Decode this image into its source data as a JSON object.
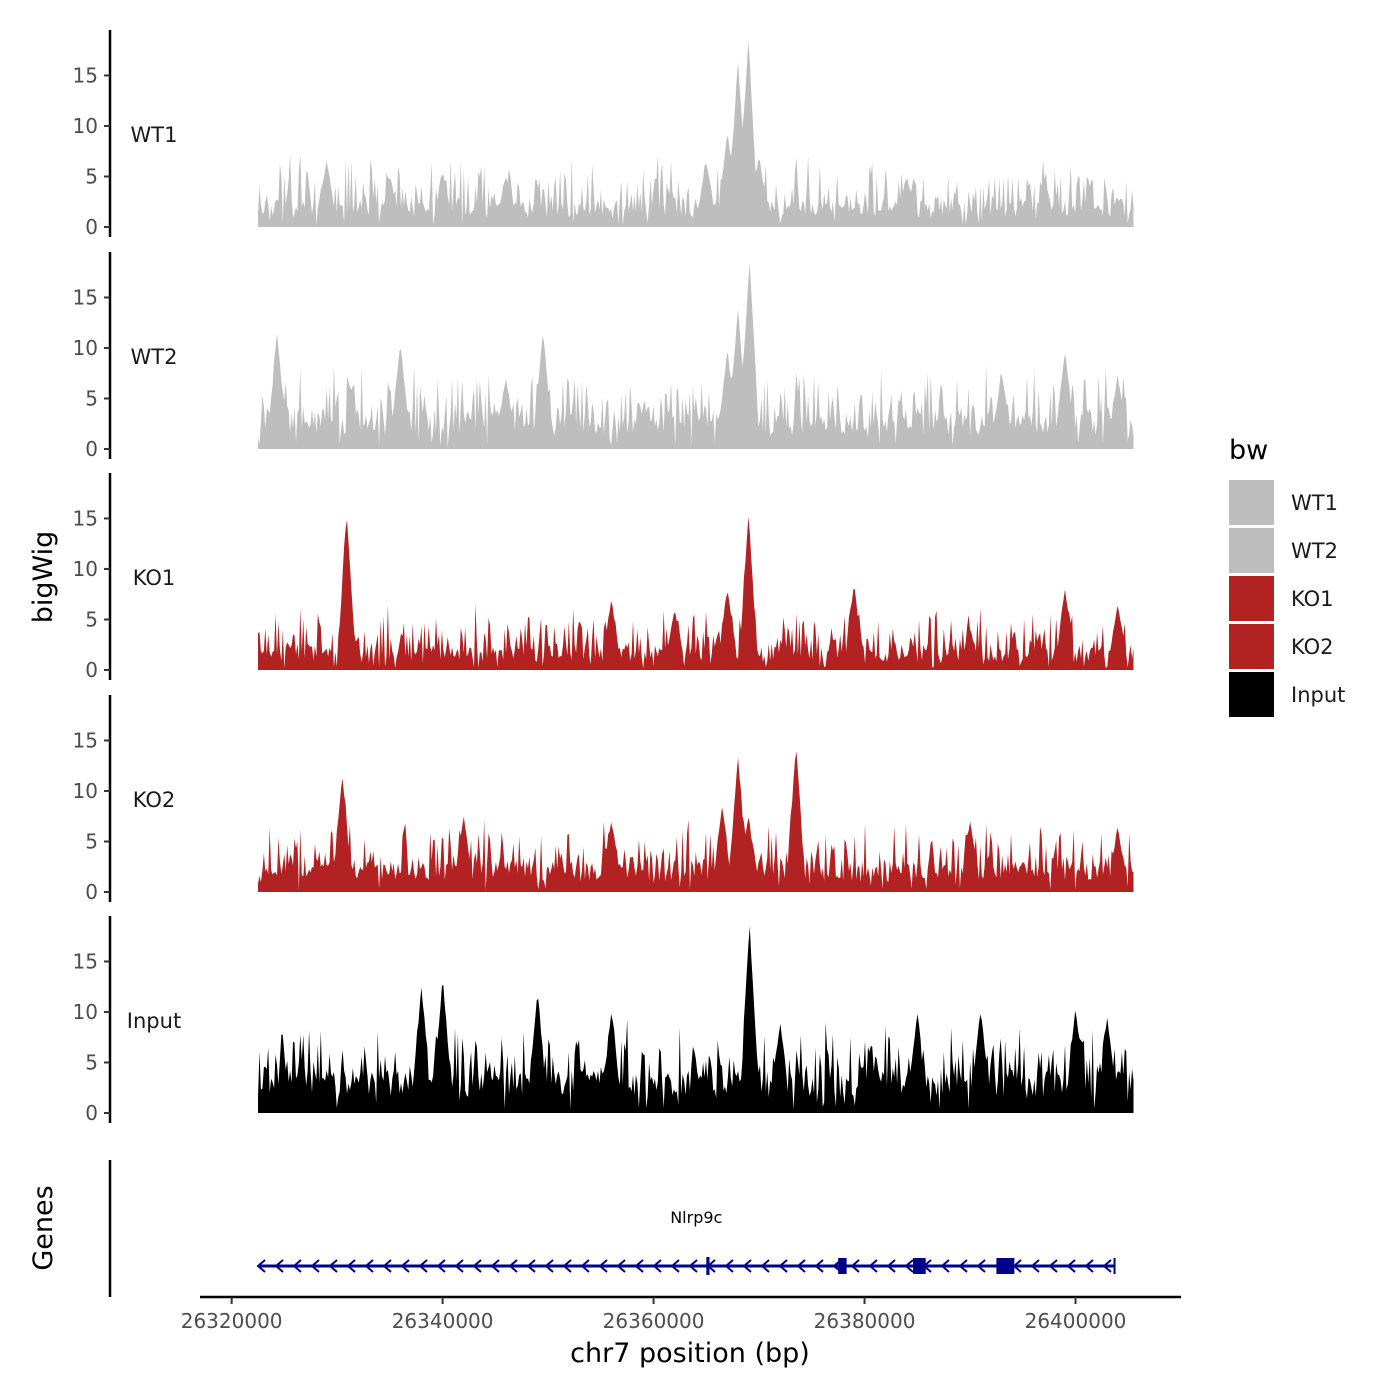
{
  "chart_data": {
    "type": "area",
    "chromosome": "chr7",
    "xlabel": "chr7 position (bp)",
    "ylabel": "bigWig",
    "genes_label": "Genes",
    "xlim": [
      26317000,
      26410000
    ],
    "x_ticks": [
      26320000,
      26340000,
      26360000,
      26380000,
      26400000
    ],
    "x_tick_labels": [
      "26320000",
      "26340000",
      "26360000",
      "26380000",
      "26400000"
    ],
    "ylim": [
      0,
      19.5
    ],
    "y_ticks": [
      0,
      5,
      10,
      15
    ],
    "y_tick_labels": [
      "0",
      "5",
      "10",
      "15"
    ],
    "data_range": [
      26322500,
      26405500
    ],
    "legend": {
      "title": "bw",
      "entries": [
        {
          "label": "WT1",
          "color": "#bebebe"
        },
        {
          "label": "WT2",
          "color": "#bebebe"
        },
        {
          "label": "KO1",
          "color": "#b22222"
        },
        {
          "label": "KO2",
          "color": "#b22222"
        },
        {
          "label": "Input",
          "color": "#000000"
        }
      ]
    },
    "series": [
      {
        "name": "WT1",
        "color": "#bebebe",
        "baseline": 2.5,
        "noise": 2.2,
        "seed": 11,
        "peaks": [
          [
            26329000,
            6.5
          ],
          [
            26335000,
            5.0
          ],
          [
            26340000,
            5.5
          ],
          [
            26346000,
            5.0
          ],
          [
            26365000,
            6.5
          ],
          [
            26367000,
            9.5
          ],
          [
            26368000,
            16.5
          ],
          [
            26369000,
            18.8
          ],
          [
            26370000,
            7.0
          ],
          [
            26384000,
            5.0
          ],
          [
            26397000,
            5.0
          ]
        ]
      },
      {
        "name": "WT2",
        "color": "#bebebe",
        "baseline": 3.5,
        "noise": 2.4,
        "seed": 23,
        "peaks": [
          [
            26324300,
            11.5
          ],
          [
            26336000,
            10.5
          ],
          [
            26346000,
            7.0
          ],
          [
            26349500,
            11.5
          ],
          [
            26367000,
            10.0
          ],
          [
            26368000,
            14.0
          ],
          [
            26369100,
            18.8
          ],
          [
            26393000,
            7.5
          ],
          [
            26399000,
            9.5
          ],
          [
            26404000,
            7.0
          ]
        ]
      },
      {
        "name": "KO1",
        "color": "#b22222",
        "baseline": 2.2,
        "noise": 2.0,
        "seed": 37,
        "peaks": [
          [
            26330900,
            15.5
          ],
          [
            26356000,
            7.0
          ],
          [
            26362000,
            6.0
          ],
          [
            26367000,
            8.0
          ],
          [
            26369000,
            15.5
          ],
          [
            26379000,
            8.5
          ],
          [
            26390000,
            4.0
          ],
          [
            26399000,
            8.0
          ],
          [
            26404000,
            6.5
          ]
        ]
      },
      {
        "name": "KO2",
        "color": "#b22222",
        "baseline": 2.8,
        "noise": 2.2,
        "seed": 53,
        "peaks": [
          [
            26330500,
            11.5
          ],
          [
            26342000,
            7.5
          ],
          [
            26356000,
            7.0
          ],
          [
            26366500,
            8.5
          ],
          [
            26368000,
            13.5
          ],
          [
            26369000,
            7.5
          ],
          [
            26373500,
            14.5
          ],
          [
            26390000,
            7.0
          ],
          [
            26404000,
            6.5
          ]
        ]
      },
      {
        "name": "Input",
        "color": "#000000",
        "baseline": 4.0,
        "noise": 2.6,
        "seed": 71,
        "peaks": [
          [
            26338000,
            12.5
          ],
          [
            26340000,
            13.5
          ],
          [
            26349000,
            12.0
          ],
          [
            26356000,
            10.0
          ],
          [
            26369100,
            18.8
          ],
          [
            26372000,
            9.0
          ],
          [
            26385000,
            10.0
          ],
          [
            26391000,
            10.0
          ],
          [
            26400000,
            10.5
          ],
          [
            26403000,
            9.5
          ]
        ]
      }
    ],
    "genes": [
      {
        "name": "Nlrp9c",
        "strand": "-",
        "start": 26322500,
        "end": 26403700,
        "exons": [
          [
            26365000,
            26365300
          ],
          [
            26377500,
            26378300
          ],
          [
            26384600,
            26385800
          ],
          [
            26392500,
            26394200
          ]
        ]
      }
    ]
  }
}
